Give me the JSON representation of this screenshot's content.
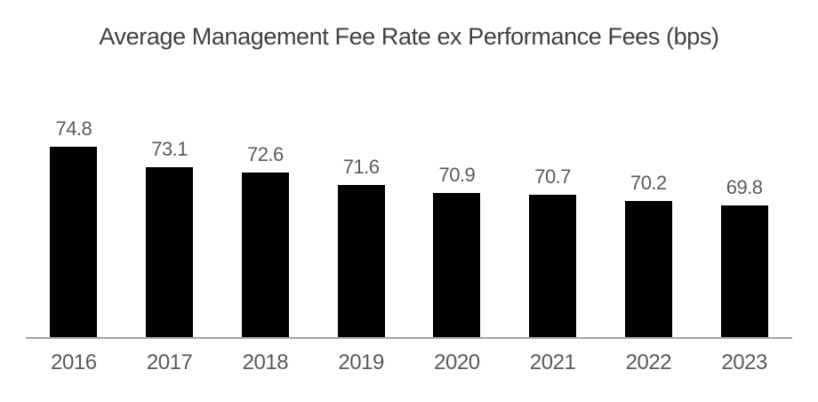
{
  "chart_data": {
    "type": "bar",
    "title": "Average Management Fee Rate ex Performance Fees (bps)",
    "categories": [
      "2016",
      "2017",
      "2018",
      "2019",
      "2020",
      "2021",
      "2022",
      "2023"
    ],
    "values": [
      74.8,
      73.1,
      72.6,
      71.6,
      70.9,
      70.7,
      70.2,
      69.8
    ],
    "value_labels": [
      "74.8",
      "73.1",
      "72.6",
      "71.6",
      "70.9",
      "70.7",
      "70.2",
      "69.8"
    ],
    "xlabel": "",
    "ylabel": "",
    "ylim": [
      58.7,
      74.8
    ],
    "grid": false,
    "legend": false,
    "bar_color": "#000000",
    "value_label_color": "#595959",
    "tick_label_color": "#595959",
    "title_color": "#404040",
    "axis_line_color": "#a6a6a6"
  }
}
